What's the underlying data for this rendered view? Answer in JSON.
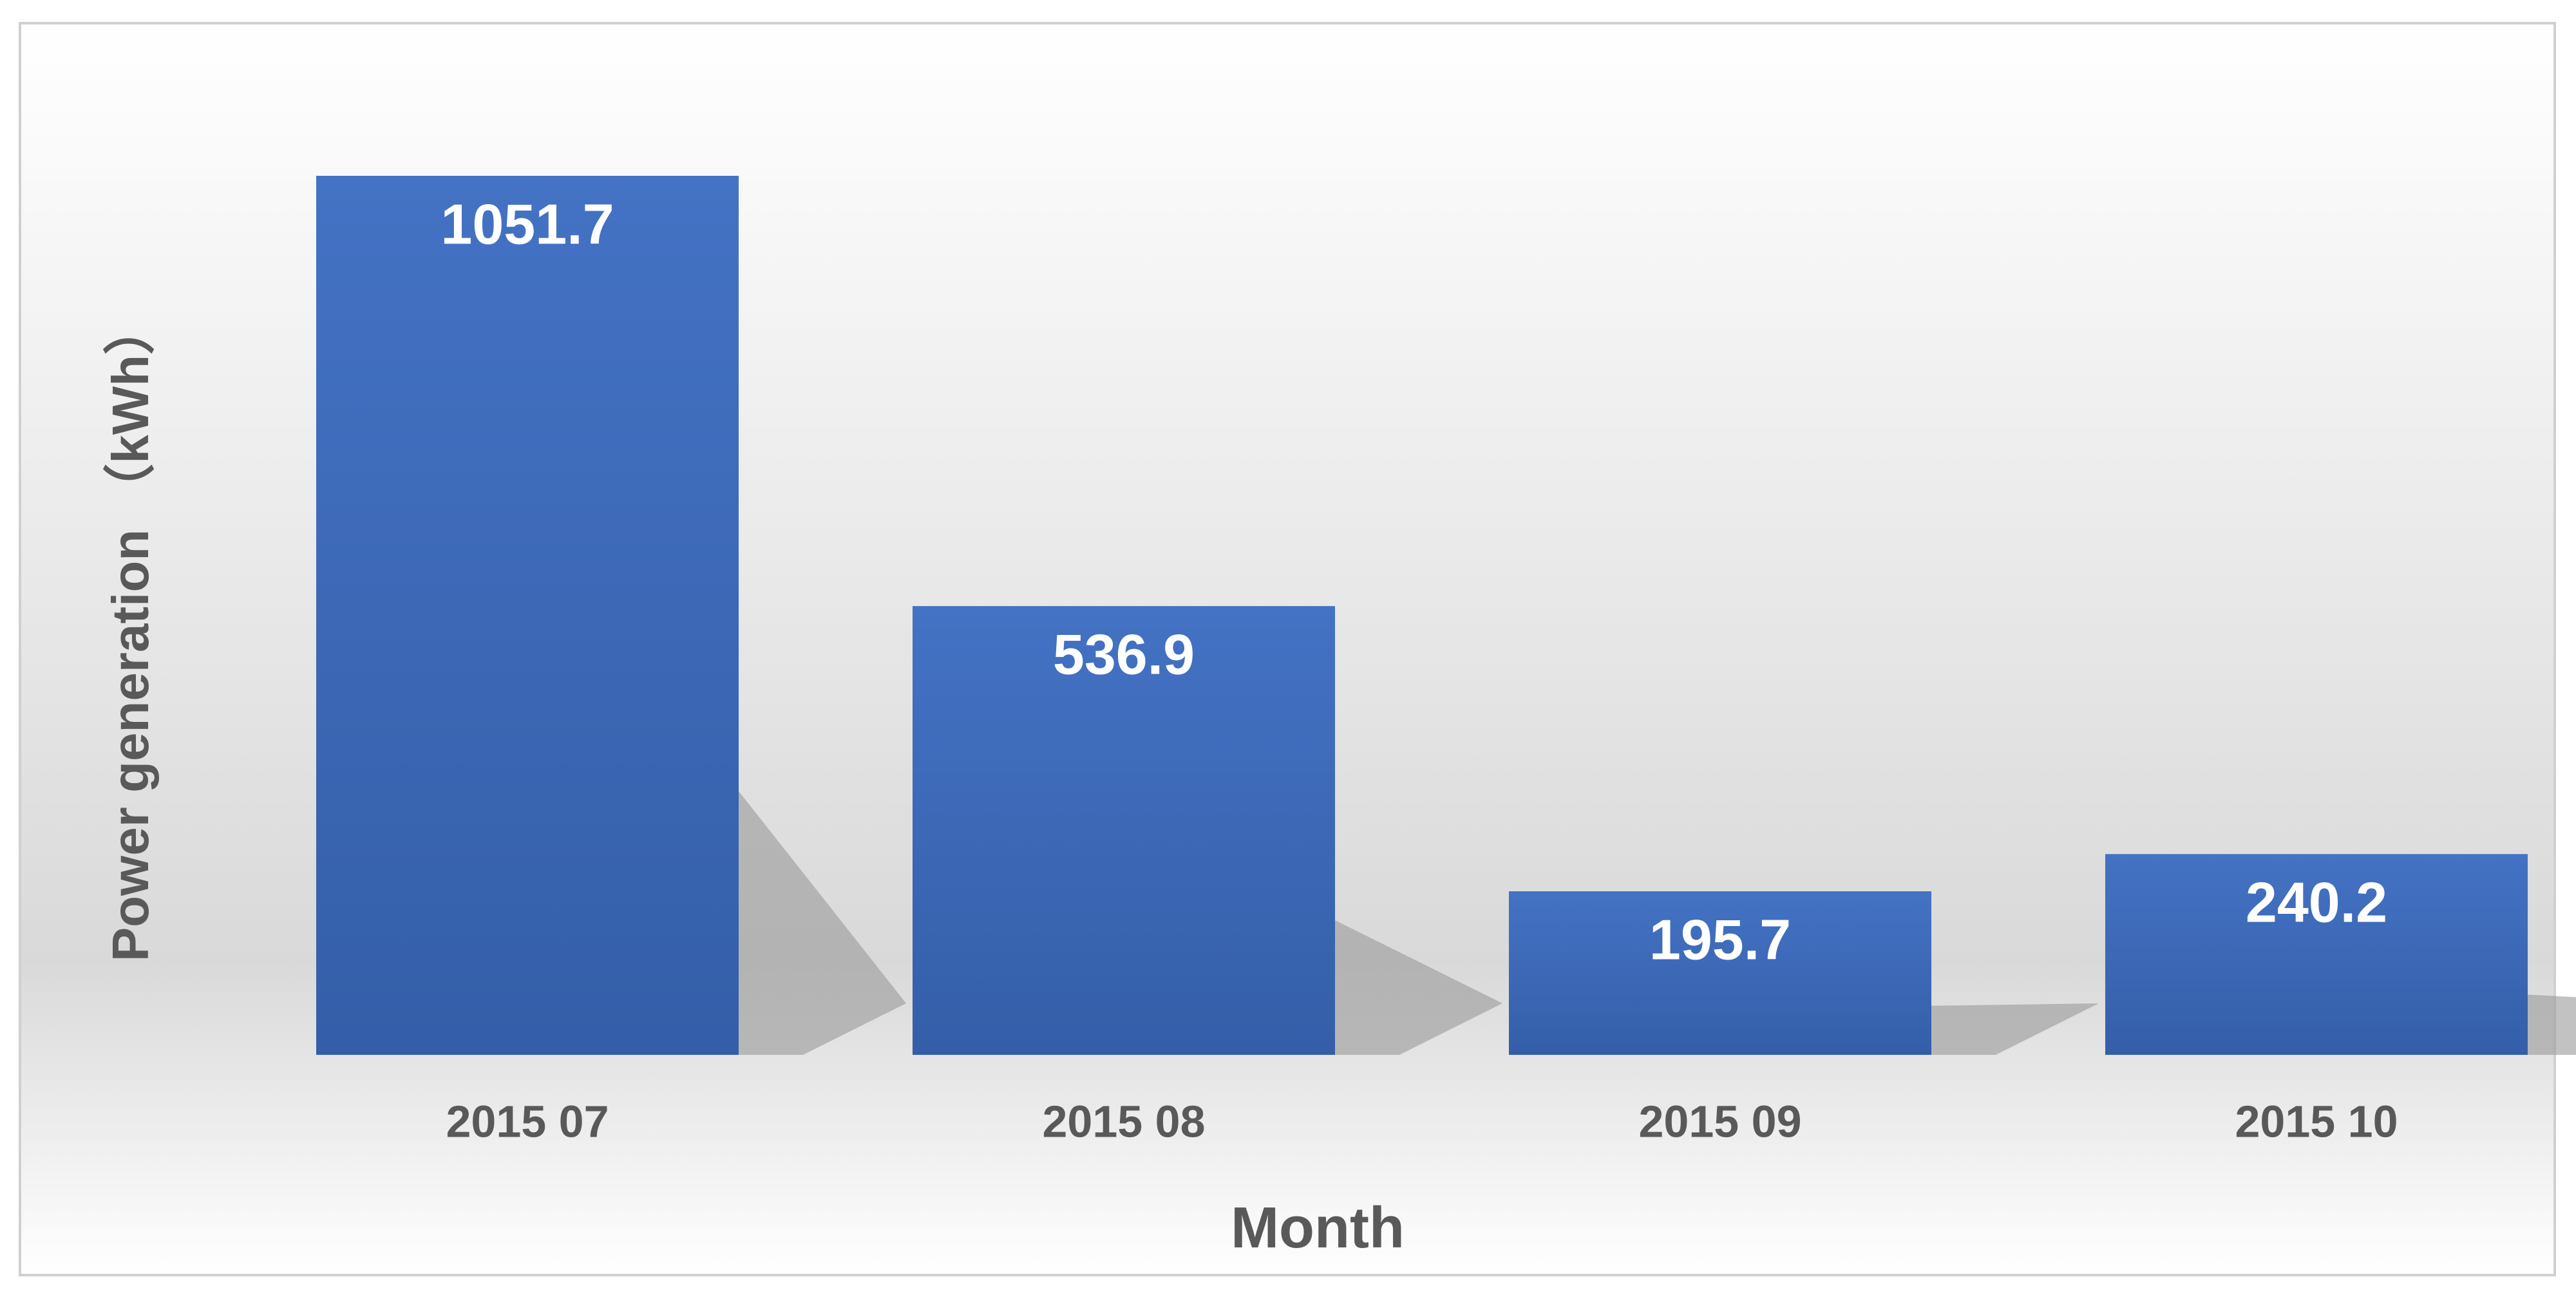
{
  "chart_data": {
    "type": "bar",
    "x_label": "Month",
    "y_label": "Power generation （kWh）",
    "categories": [
      "2015 07",
      "2015 08",
      "2015 09",
      "2015 10"
    ],
    "values": [
      1051.7,
      536.9,
      195.7,
      240.2
    ],
    "color": "#4472c4"
  }
}
